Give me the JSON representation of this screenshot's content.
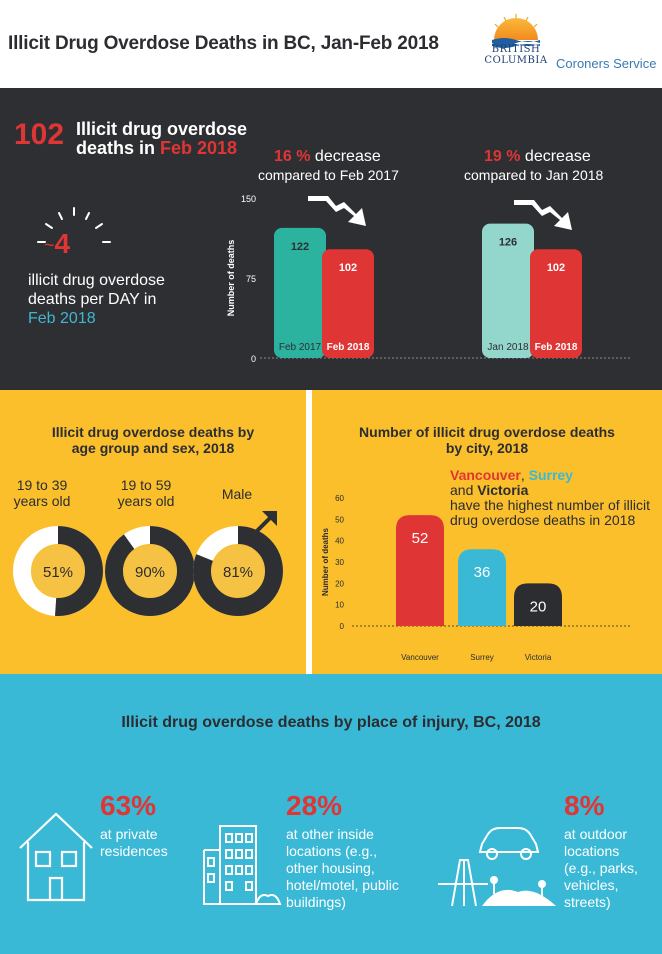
{
  "header": {
    "title": "Illicit Drug Overdose Deaths in BC, Jan-Feb 2018",
    "logo_line1": "BRITISH",
    "logo_line2": "COLUMBIA",
    "service": "Coroners Service"
  },
  "summary": {
    "count": "102",
    "caption_line1": "Illicit drug overdose",
    "caption_line2_prefix": "deaths in ",
    "caption_month": "Feb 2018",
    "per_day_prefix": "~",
    "per_day_value": "4",
    "per_day_line1": "illicit drug overdose",
    "per_day_line2": "deaths per DAY in",
    "per_day_month": "Feb 2018"
  },
  "comparisons": [
    {
      "pct": "16 %",
      "word": " decrease",
      "sub": "compared to Feb 2017"
    },
    {
      "pct": "19 %",
      "word": " decrease",
      "sub": "compared to Jan 2018"
    }
  ],
  "chart_data": [
    {
      "type": "bar",
      "ylabel": "Number of deaths",
      "ylim": [
        0,
        150
      ],
      "yticks": [
        "0",
        "75",
        "150"
      ],
      "groups": [
        {
          "bars": [
            {
              "label": "Feb 2017",
              "value": 122,
              "color": "#2bb3a0"
            },
            {
              "label": "Feb 2018",
              "value": 102,
              "color": "#e03535"
            }
          ]
        },
        {
          "bars": [
            {
              "label": "Jan 2018",
              "value": 126,
              "color": "#93d6cc"
            },
            {
              "label": "Feb 2018",
              "value": 102,
              "color": "#e03535"
            }
          ]
        }
      ]
    },
    {
      "type": "bar",
      "title": "Number of illicit drug overdose deaths by city, 2018",
      "ylabel": "Number of deaths",
      "ylim": [
        0,
        60
      ],
      "yticks": [
        "0",
        "10",
        "20",
        "30",
        "40",
        "50",
        "60"
      ],
      "categories": [
        "Vancouver",
        "Surrey",
        "Victoria"
      ],
      "values": [
        52,
        36,
        20
      ],
      "colors": [
        "#e03535",
        "#3ab9d6",
        "#2b2d31"
      ]
    },
    {
      "type": "pie",
      "title": "Illicit drug overdose  deaths by age group and sex,  2018",
      "categories": [
        "19 to 39 years old",
        "19 to 59 years old",
        "Male"
      ],
      "values": [
        51,
        90,
        81
      ]
    }
  ],
  "age_section": {
    "title_line1": "Illicit drug overdose  deaths by",
    "title_line2": "age group and sex,  2018",
    "items": [
      {
        "label_line1": "19 to 39",
        "label_line2": "years old",
        "pct": "51%"
      },
      {
        "label_line1": "19 to 59",
        "label_line2": "years old",
        "pct": "90%"
      },
      {
        "label_line1": "Male",
        "label_line2": "",
        "pct": "81%"
      }
    ]
  },
  "city_section": {
    "title_line1": "Number of illicit drug overdose deaths",
    "title_line2": "by city, 2018",
    "note_city1": "Vancouver",
    "note_comma": ", ",
    "note_city2": "Surrey",
    "note_and": "and ",
    "note_city3": "Victoria",
    "note_rest": "have  the highest number of illicit drug overdose deaths in 2018"
  },
  "place_section": {
    "title": "Illicit drug overdose  deaths by place of injury, BC,  2018",
    "items": [
      {
        "pct": "63%",
        "text_lines": [
          "at private",
          "residences"
        ]
      },
      {
        "pct": "28%",
        "text_lines": [
          "at other inside",
          "locations (e.g.,",
          "other housing,",
          "hotel/motel, public",
          "buildings)"
        ]
      },
      {
        "pct": "8%",
        "text_lines": [
          "at outdoor",
          "locations",
          "(e.g., parks,",
          "vehicles,",
          "streets)"
        ]
      }
    ]
  },
  "colors": {
    "red": "#e03535",
    "dark": "#2e2f32",
    "yellow": "#fbbf2c",
    "blue": "#3ab9d6",
    "teal": "#2bb3a0"
  }
}
